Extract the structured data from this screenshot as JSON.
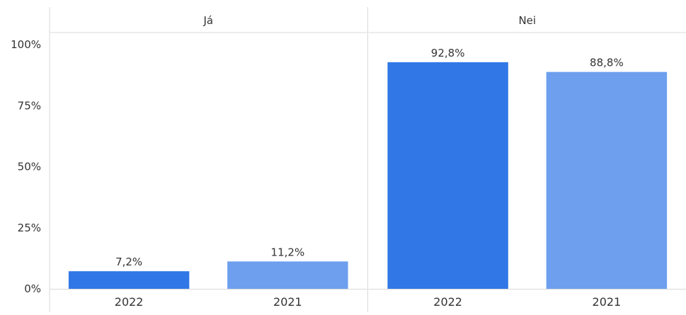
{
  "chart_data": {
    "type": "bar",
    "ylim": [
      0,
      100
    ],
    "y_ticks": [
      0,
      25,
      50,
      75,
      100
    ],
    "y_tick_labels": [
      "0%",
      "25%",
      "50%",
      "75%",
      "100%"
    ],
    "grid": false,
    "facets": [
      {
        "title": "Já",
        "bars": [
          {
            "category": "2022",
            "value": 7.2,
            "label": "7,2%",
            "color": "#3178e6"
          },
          {
            "category": "2021",
            "value": 11.2,
            "label": "11,2%",
            "color": "#6d9fee"
          }
        ]
      },
      {
        "title": "Nei",
        "bars": [
          {
            "category": "2022",
            "value": 92.8,
            "label": "92,8%",
            "color": "#3178e6"
          },
          {
            "category": "2021",
            "value": 88.8,
            "label": "88,8%",
            "color": "#6d9fee"
          }
        ]
      }
    ]
  }
}
